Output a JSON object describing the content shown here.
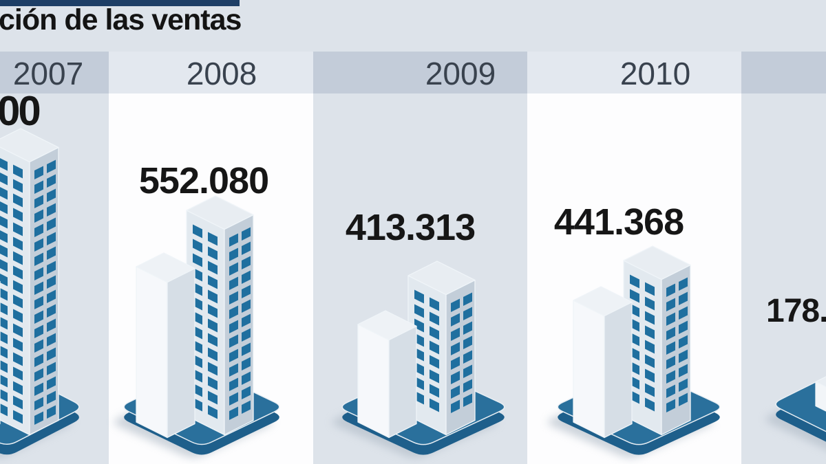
{
  "title": "ción de las ventas",
  "columns": [
    {
      "year": "2007",
      "value": "00"
    },
    {
      "year": "2008",
      "value": "552.080"
    },
    {
      "year": "2009",
      "value": "413.313"
    },
    {
      "year": "2010",
      "value": "441.368"
    },
    {
      "year": "",
      "value": "178."
    }
  ],
  "chart_data": {
    "type": "bar",
    "title": "ción de las ventas",
    "categories": [
      "2007",
      "2008",
      "2009",
      "2010",
      ""
    ],
    "values": [
      null,
      552080,
      413313,
      441368,
      null
    ],
    "values_displayed": [
      "00",
      "552.080",
      "413.313",
      "441.368",
      "178."
    ],
    "grid": false,
    "legend_position": "none"
  },
  "colors": {
    "accent": "#1d3e66",
    "background": "#dde3ea",
    "band_dark": "#c3ccd9",
    "band_light": "#e3e8ef",
    "card": "#fdfdfe",
    "platform": "#2a709c",
    "platform_side": "#1e5f8b",
    "window": "#1f6f9f",
    "value_text": "#161616",
    "year_text": "#39424e"
  }
}
